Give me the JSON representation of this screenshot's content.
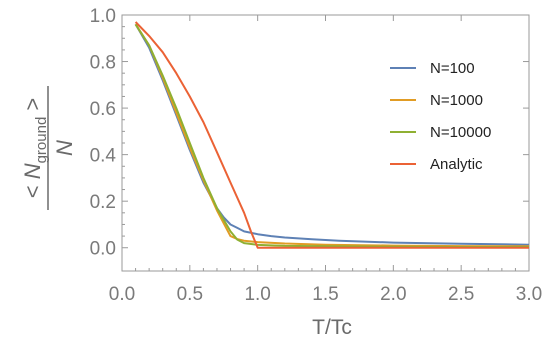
{
  "chart_data": {
    "type": "line",
    "xlabel": "T/Tc",
    "ylabel": {
      "open": "<",
      "symbol": "N",
      "subscript": "ground",
      "close": ">",
      "denominator": "N"
    },
    "xlim": [
      0.0,
      3.0
    ],
    "ylim": [
      -0.1,
      1.0
    ],
    "xticks": [
      "0.0",
      "0.5",
      "1.0",
      "1.5",
      "2.0",
      "2.5",
      "3.0"
    ],
    "yticks": [
      "0.0",
      "0.2",
      "0.4",
      "0.6",
      "0.8",
      "1.0"
    ],
    "grid": false,
    "legend_position": "right",
    "series": [
      {
        "name": "N=100",
        "color": "#5e81b5",
        "x": [
          0.1,
          0.2,
          0.3,
          0.4,
          0.5,
          0.6,
          0.7,
          0.75,
          0.8,
          0.85,
          0.9,
          1.0,
          1.1,
          1.2,
          1.4,
          1.6,
          2.0,
          2.5,
          3.0
        ],
        "y": [
          0.96,
          0.86,
          0.72,
          0.57,
          0.42,
          0.28,
          0.17,
          0.13,
          0.1,
          0.085,
          0.07,
          0.058,
          0.05,
          0.044,
          0.036,
          0.03,
          0.022,
          0.017,
          0.013
        ]
      },
      {
        "name": "N=1000",
        "color": "#e19c24",
        "x": [
          0.1,
          0.2,
          0.3,
          0.4,
          0.5,
          0.6,
          0.7,
          0.8,
          0.85,
          0.9,
          1.0,
          1.2,
          1.5,
          2.0,
          2.5,
          3.0
        ],
        "y": [
          0.96,
          0.87,
          0.73,
          0.58,
          0.43,
          0.29,
          0.16,
          0.05,
          0.037,
          0.03,
          0.024,
          0.018,
          0.013,
          0.009,
          0.007,
          0.006
        ]
      },
      {
        "name": "N=10000",
        "color": "#8fb032",
        "x": [
          0.1,
          0.2,
          0.3,
          0.4,
          0.5,
          0.6,
          0.7,
          0.8,
          0.85,
          0.9,
          1.0,
          1.2,
          1.5,
          2.0,
          2.5,
          3.0
        ],
        "y": [
          0.96,
          0.87,
          0.74,
          0.6,
          0.45,
          0.3,
          0.17,
          0.07,
          0.035,
          0.02,
          0.012,
          0.008,
          0.006,
          0.004,
          0.003,
          0.003
        ]
      },
      {
        "name": "Analytic",
        "color": "#eb6235",
        "x": [
          0.1,
          0.2,
          0.3,
          0.4,
          0.5,
          0.6,
          0.7,
          0.8,
          0.9,
          0.95,
          1.0,
          1.5,
          2.0,
          2.5,
          3.0
        ],
        "y": [
          0.97,
          0.91,
          0.84,
          0.75,
          0.65,
          0.54,
          0.41,
          0.28,
          0.15,
          0.07,
          0.0,
          0.0,
          0.0,
          0.0,
          0.0
        ]
      }
    ]
  }
}
